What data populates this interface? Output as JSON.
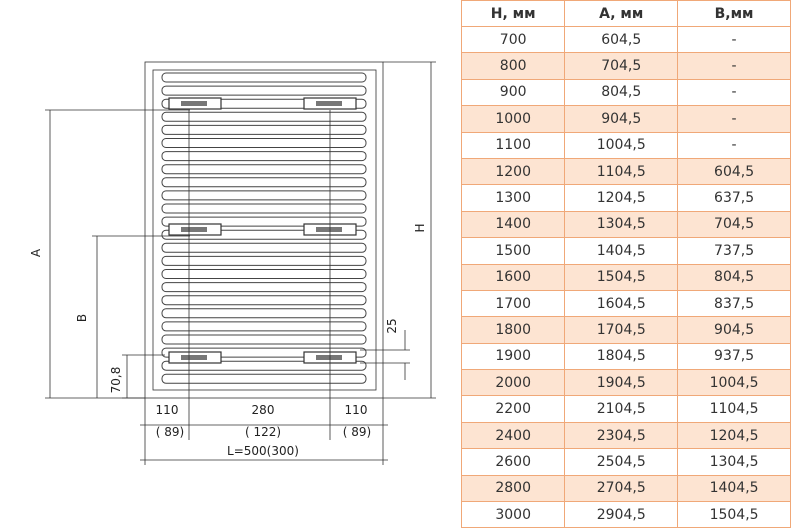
{
  "drawing": {
    "labels": {
      "a": "A",
      "b": "B",
      "h": "H",
      "gap": "25",
      "offset": "70,8",
      "left": "110",
      "middle": "280",
      "right": "110",
      "left_alt": "( 89)",
      "middle_alt": "( 122)",
      "right_alt": "( 89)",
      "length": "L=500(300)"
    }
  },
  "table": {
    "header": [
      "H, мм",
      "A, мм",
      "B,мм"
    ],
    "rows": [
      [
        "700",
        "604,5",
        "-"
      ],
      [
        "800",
        "704,5",
        "-"
      ],
      [
        "900",
        "804,5",
        "-"
      ],
      [
        "1000",
        "904,5",
        "-"
      ],
      [
        "1100",
        "1004,5",
        "-"
      ],
      [
        "1200",
        "1104,5",
        "604,5"
      ],
      [
        "1300",
        "1204,5",
        "637,5"
      ],
      [
        "1400",
        "1304,5",
        "704,5"
      ],
      [
        "1500",
        "1404,5",
        "737,5"
      ],
      [
        "1600",
        "1504,5",
        "804,5"
      ],
      [
        "1700",
        "1604,5",
        "837,5"
      ],
      [
        "1800",
        "1704,5",
        "904,5"
      ],
      [
        "1900",
        "1804,5",
        "937,5"
      ],
      [
        "2000",
        "1904,5",
        "1004,5"
      ],
      [
        "2200",
        "2104,5",
        "1104,5"
      ],
      [
        "2400",
        "2304,5",
        "1204,5"
      ],
      [
        "2600",
        "2504,5",
        "1304,5"
      ],
      [
        "2800",
        "2704,5",
        "1404,5"
      ],
      [
        "3000",
        "2904,5",
        "1504,5"
      ]
    ]
  }
}
